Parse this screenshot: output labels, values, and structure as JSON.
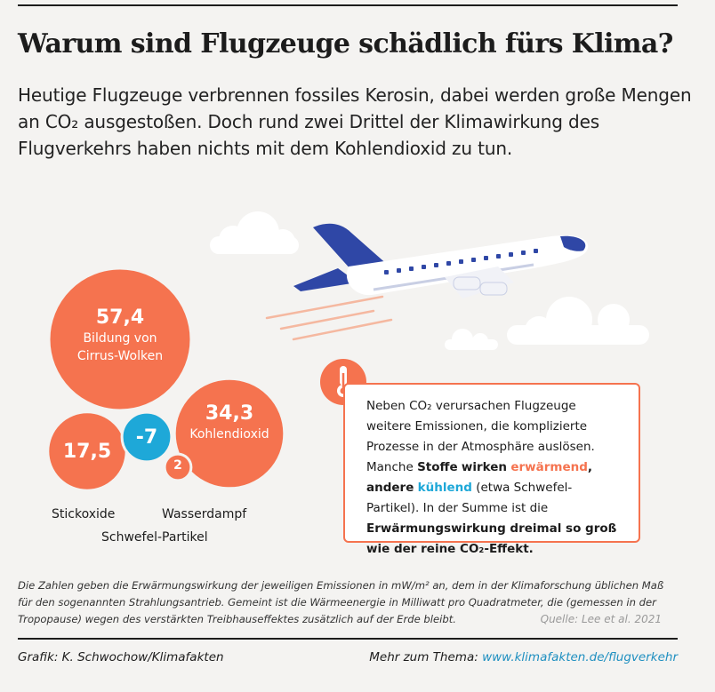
{
  "title": "Warum sind Flugzeuge schädlich fürs Klima?",
  "subtitle": "Heutige Flugzeuge verbrennen fossiles Kerosin, dabei werden große Mengen an CO₂ ausgestoßen. Doch rund zwei Drittel der Klimawirkung des Flugverkehrs haben nichts mit dem Kohlendioxid zu tun.",
  "colors": {
    "warming": "#f5734f",
    "cooling": "#1ea8d8",
    "plane_blue": "#2f47a6"
  },
  "icons": {
    "plane": "airplane-icon",
    "thermometer": "thermometer-icon",
    "clouds": "cloud-icon"
  },
  "chart_data": {
    "type": "bubble",
    "unit": "mW/m²",
    "items": [
      {
        "value_label": "57,4",
        "value": 57.4,
        "name": "Bildung von Cirrus-Wolken",
        "name_lines": [
          "Bildung von",
          "Cirrus-Wolken"
        ],
        "effect": "warming"
      },
      {
        "value_label": "34,3",
        "value": 34.3,
        "name": "Kohlendioxid",
        "name_lines": [
          "Kohlendioxid"
        ],
        "effect": "warming"
      },
      {
        "value_label": "17,5",
        "value": 17.5,
        "name": "Stickoxide",
        "name_lines": [],
        "effect": "warming"
      },
      {
        "value_label": "-7",
        "value": -7,
        "name": "Schwefel-Partikel",
        "name_lines": [],
        "effect": "cooling"
      },
      {
        "value_label": "2",
        "value": 2,
        "name": "Wasserdampf",
        "name_lines": [],
        "effect": "warming"
      }
    ]
  },
  "infobox": {
    "p1": "Neben CO₂ verursachen Flugzeuge weitere Emissionen, die komplizierte Prozesse in der Atmosphäre auslösen. Manche ",
    "stoffe": "Stoffe",
    "wirken": "wirken",
    "erwaermend": "erwärmend",
    "andere": ", andere",
    "kuehlend": "kühlend",
    "p2": " (etwa Schwefel-Partikel). In der Summe ist die ",
    "conclusion": "Erwärmungswirkung dreimal so groß wie der reine CO₂-Effekt."
  },
  "footnote": "Die Zahlen geben die Erwärmungswirkung der jeweiligen Emissionen in mW/m² an, dem in der Klimaforschung üblichen Maß für den sogenannten Strahlungsantrieb. Gemeint ist die Wärmeenergie in Milliwatt pro Quadratmeter, die (gemessen in der Tropopause) wegen des verstärkten Treibhauseffektes zusätzlich auf der Erde bleibt.",
  "source": "Quelle: Lee et al. 2021",
  "credit": "Grafik: K. Schwochow/Klimafakten",
  "more_label": "Mehr zum Thema:",
  "more_link": "www.klimafakten.de/flugverkehr"
}
